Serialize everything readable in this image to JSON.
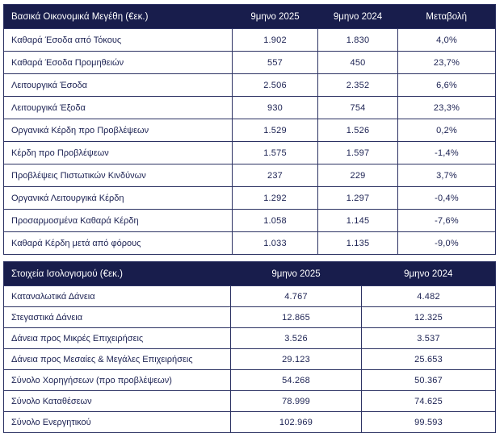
{
  "colors": {
    "header_bg": "#181d4c",
    "header_text": "#ffffff",
    "body_text": "#1b2152",
    "border": "#2c3263",
    "background": "#ffffff"
  },
  "tables": [
    {
      "id": "financial-metrics",
      "title": "Βασικά Οικονομικά Μεγέθη (€εκ.)",
      "columns": [
        "9μηνο 2025",
        "9μηνο 2024",
        "Μεταβολή"
      ],
      "rows": [
        {
          "label": "Καθαρά Έσοδα από Τόκους",
          "values": [
            "1.902",
            "1.830",
            "4,0%"
          ]
        },
        {
          "label": "Καθαρά Έσοδα Προμηθειών",
          "values": [
            "557",
            "450",
            "23,7%"
          ]
        },
        {
          "label": "Λειτουργικά Έσοδα",
          "values": [
            "2.506",
            "2.352",
            "6,6%"
          ]
        },
        {
          "label": "Λειτουργικά Έξοδα",
          "values": [
            "930",
            "754",
            "23,3%"
          ]
        },
        {
          "label": "Οργανικά Κέρδη προ Προβλέψεων",
          "values": [
            "1.529",
            "1.526",
            "0,2%"
          ]
        },
        {
          "label": "Κέρδη προ Προβλέψεων",
          "values": [
            "1.575",
            "1.597",
            "-1,4%"
          ]
        },
        {
          "label": "Προβλέψεις Πιστωτικών Κινδύνων",
          "values": [
            "237",
            "229",
            "3,7%"
          ]
        },
        {
          "label": "Οργανικά Λειτουργικά Κέρδη",
          "values": [
            "1.292",
            "1.297",
            "-0,4%"
          ]
        },
        {
          "label": "Προσαρμοσμένα Καθαρά Κέρδη",
          "values": [
            "1.058",
            "1.145",
            "-7,6%"
          ]
        },
        {
          "label": "Καθαρά Κέρδη μετά από φόρους",
          "values": [
            "1.033",
            "1.135",
            "-9,0%"
          ]
        }
      ]
    },
    {
      "id": "balance-sheet",
      "title": "Στοιχεία Ισολογισμού (€εκ.)",
      "columns": [
        "9μηνο 2025",
        "9μηνο 2024"
      ],
      "rows": [
        {
          "label": "Καταναλωτικά Δάνεια",
          "values": [
            "4.767",
            "4.482"
          ]
        },
        {
          "label": "Στεγαστικά Δάνεια",
          "values": [
            "12.865",
            "12.325"
          ]
        },
        {
          "label": "Δάνεια προς Μικρές Επιχειρήσεις",
          "values": [
            "3.526",
            "3.537"
          ]
        },
        {
          "label": "Δάνεια προς Μεσαίες & Μεγάλες Επιχειρήσεις",
          "values": [
            "29.123",
            "25.653"
          ]
        },
        {
          "label": "Σύνολο Χορηγήσεων (προ προβλέψεων)",
          "values": [
            "54.268",
            "50.367"
          ]
        },
        {
          "label": "Σύνολο Καταθέσεων",
          "values": [
            "78.999",
            "74.625"
          ]
        },
        {
          "label": "Σύνολο Ενεργητικού",
          "values": [
            "102.969",
            "99.593"
          ]
        }
      ]
    }
  ]
}
